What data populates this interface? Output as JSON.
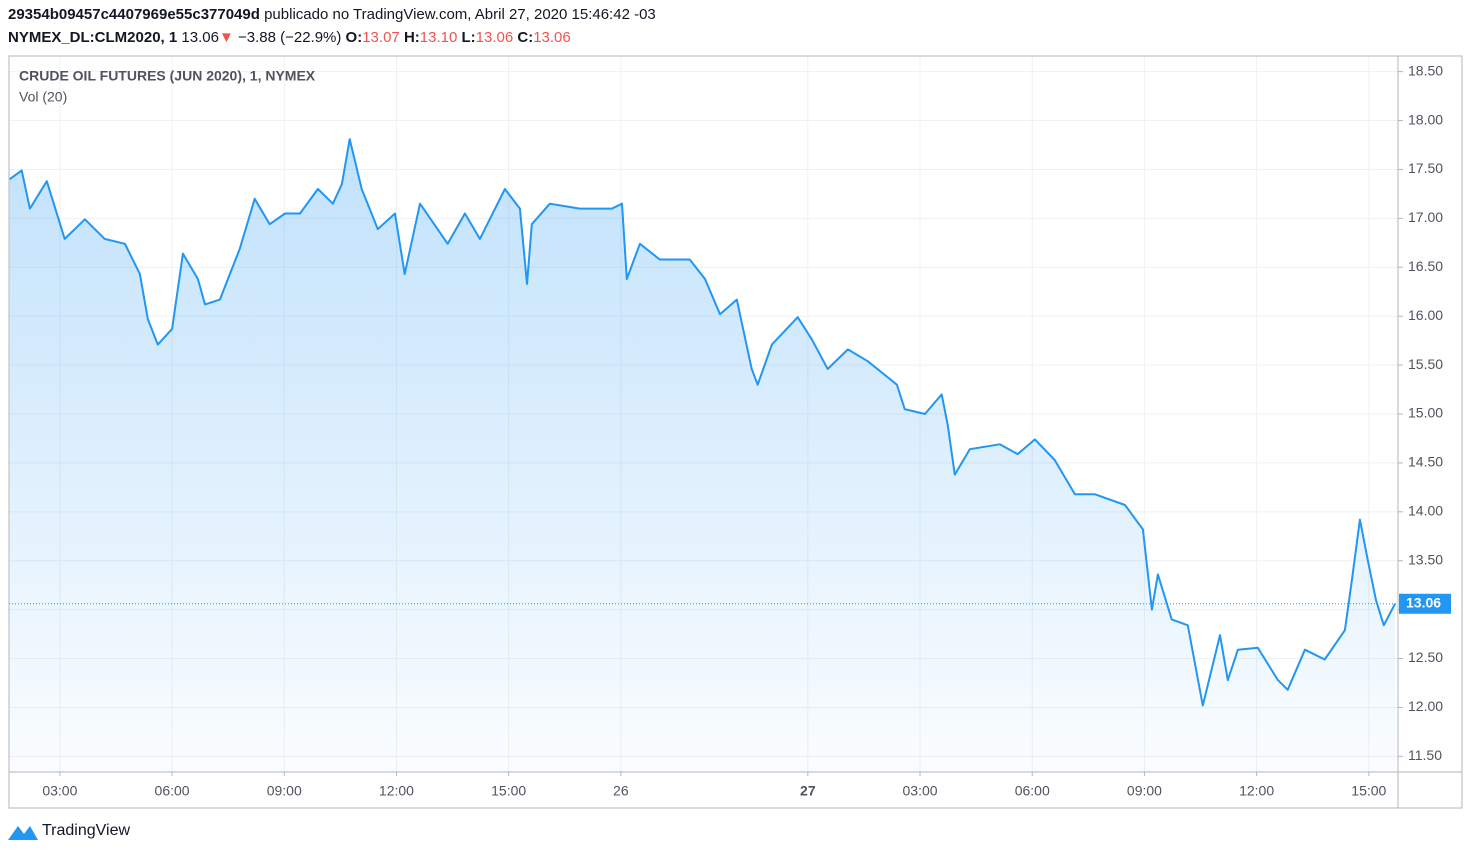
{
  "header": {
    "author": "29354b09457c4407969e55c377049d",
    "published": " publicado no TradingView.com, Abril 27, 2020 15:46:42 -03",
    "symbol": "NYMEX_DL:CLM2020, 1",
    "price": "13.06",
    "arrow": "▼",
    "change": "−3.88 (−22.9%)",
    "o_label": "O:",
    "open": "13.07",
    "h_label": "H:",
    "high": "13.10",
    "l_label": "L:",
    "low": "13.06",
    "c_label": "C:",
    "close": "13.06"
  },
  "chart_data": {
    "type": "area",
    "indicator": "Vol (20)",
    "x": [
      1.66,
      1.98,
      2.2,
      2.65,
      3.13,
      3.67,
      4.2,
      4.74,
      5.14,
      5.35,
      5.62,
      6.0,
      6.29,
      6.69,
      6.88,
      7.28,
      7.81,
      8.21,
      8.61,
      9.02,
      9.42,
      9.9,
      10.3,
      10.54,
      10.75,
      11.07,
      11.5,
      11.96,
      12.22,
      12.63,
      13.37,
      13.83,
      14.23,
      14.9,
      15.3,
      15.49,
      15.62,
      16.1,
      16.9,
      17.76,
      18.03,
      18.16,
      18.51,
      19.04,
      19.84,
      20.25,
      20.65,
      21.1,
      21.5,
      21.66,
      22.04,
      22.73,
      23.11,
      23.53,
      24.07,
      24.6,
      25.38,
      25.59,
      26.13,
      26.58,
      26.74,
      26.93,
      27.33,
      28.13,
      28.61,
      29.07,
      29.6,
      30.14,
      30.67,
      31.48,
      31.96,
      32.2,
      32.36,
      32.73,
      33.16,
      33.56,
      34.02,
      34.23,
      34.5,
      35.03,
      35.57,
      35.83,
      36.29,
      36.82,
      37.36,
      37.55,
      37.76,
      37.97,
      38.19,
      38.4,
      38.7
    ],
    "series": [
      {
        "name": "CRUDE OIL FUTURES (JUN 2020), 1, NYMEX",
        "color": "#2196f3",
        "values": [
          17.4,
          17.49,
          17.1,
          17.38,
          16.79,
          16.99,
          16.79,
          16.74,
          16.43,
          15.97,
          15.71,
          15.87,
          16.64,
          16.38,
          16.12,
          16.17,
          16.69,
          17.2,
          16.94,
          17.05,
          17.05,
          17.3,
          17.15,
          17.35,
          17.81,
          17.3,
          16.89,
          17.05,
          16.43,
          17.15,
          16.74,
          17.05,
          16.79,
          17.3,
          17.1,
          16.33,
          16.94,
          17.15,
          17.1,
          17.1,
          17.15,
          16.38,
          16.74,
          16.58,
          16.58,
          16.38,
          16.02,
          16.17,
          15.46,
          15.3,
          15.71,
          15.99,
          15.76,
          15.46,
          15.66,
          15.54,
          15.3,
          15.05,
          15.0,
          15.2,
          14.89,
          14.38,
          14.64,
          14.69,
          14.59,
          14.74,
          14.53,
          14.18,
          14.18,
          14.07,
          13.82,
          13.0,
          13.36,
          12.9,
          12.84,
          12.02,
          12.74,
          12.28,
          12.59,
          12.61,
          12.28,
          12.18,
          12.59,
          12.49,
          12.79,
          13.31,
          13.92,
          13.51,
          13.1,
          12.84,
          13.06
        ]
      }
    ],
    "last_price": {
      "value": 13.06,
      "label": "13.06"
    },
    "xlim": [
      1.64,
      38.78
    ],
    "xticks": [
      {
        "value": 3,
        "label": "03:00"
      },
      {
        "value": 6,
        "label": "06:00"
      },
      {
        "value": 9,
        "label": "09:00"
      },
      {
        "value": 12,
        "label": "12:00"
      },
      {
        "value": 15,
        "label": "15:00"
      },
      {
        "value": 18,
        "label": "26"
      },
      {
        "value": 23,
        "label": "27"
      },
      {
        "value": 26,
        "label": "03:00"
      },
      {
        "value": 29,
        "label": "06:00"
      },
      {
        "value": 32,
        "label": "09:00"
      },
      {
        "value": 35,
        "label": "12:00"
      },
      {
        "value": 38,
        "label": "15:00"
      }
    ],
    "ylim": [
      11.34,
      18.66
    ],
    "yticks": [
      {
        "value": 11.5,
        "label": "11.50"
      },
      {
        "value": 12,
        "label": "12.00"
      },
      {
        "value": 12.5,
        "label": "12.50"
      },
      {
        "value": 13,
        "label": "13.00"
      },
      {
        "value": 13.5,
        "label": "13.50"
      },
      {
        "value": 14,
        "label": "14.00"
      },
      {
        "value": 14.5,
        "label": "14.50"
      },
      {
        "value": 15,
        "label": "15.00"
      },
      {
        "value": 15.5,
        "label": "15.50"
      },
      {
        "value": 16,
        "label": "16.00"
      },
      {
        "value": 16.5,
        "label": "16.50"
      },
      {
        "value": 17,
        "label": "17.00"
      },
      {
        "value": 17.5,
        "label": "17.50"
      },
      {
        "value": 18,
        "label": "18.00"
      },
      {
        "value": 18.5,
        "label": "18.50"
      }
    ],
    "grid": true
  },
  "footer": {
    "brand": "TradingView"
  }
}
